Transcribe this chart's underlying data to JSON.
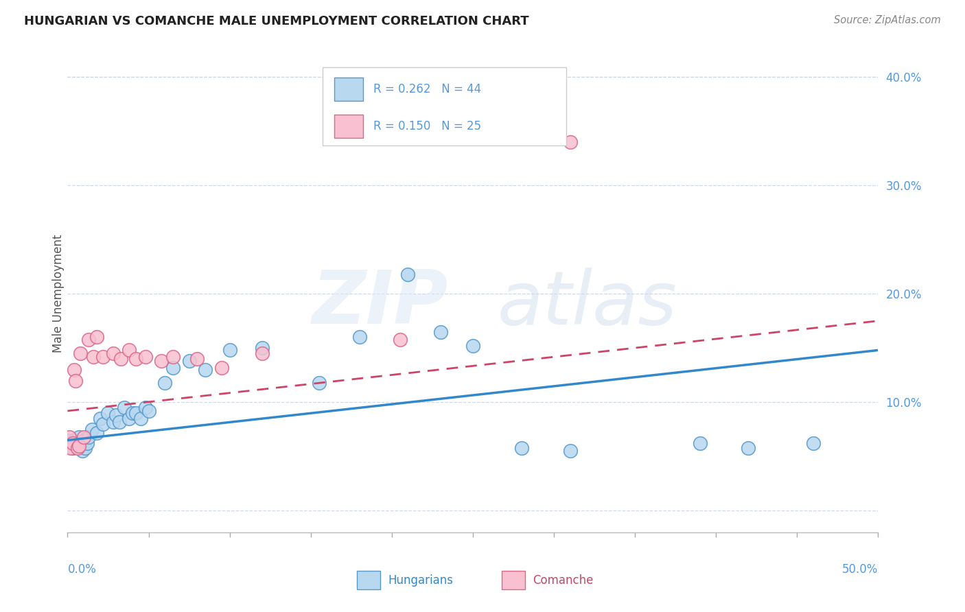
{
  "title": "HUNGARIAN VS COMANCHE MALE UNEMPLOYMENT CORRELATION CHART",
  "source": "Source: ZipAtlas.com",
  "ylabel": "Male Unemployment",
  "xlim": [
    0.0,
    0.5
  ],
  "ylim": [
    -0.02,
    0.42
  ],
  "plot_ylim": [
    -0.02,
    0.42
  ],
  "yticks": [
    0.0,
    0.1,
    0.2,
    0.3,
    0.4
  ],
  "ytick_labels": [
    "",
    "10.0%",
    "20.0%",
    "30.0%",
    "40.0%"
  ],
  "background_color": "#ffffff",
  "grid_color": "#d0d8e8",
  "hungarian_color": "#b8d8f0",
  "hungarian_edge_color": "#5599cc",
  "comanche_color": "#f8c0d0",
  "comanche_edge_color": "#dd6688",
  "hungarian_line_color": "#3388cc",
  "comanche_line_color": "#cc4466",
  "axis_text_color": "#5599dd",
  "title_color": "#222222",
  "source_color": "#888888",
  "R_hungarian": 0.262,
  "N_hungarian": 44,
  "R_comanche": 0.15,
  "N_comanche": 25,
  "hun_trend": [
    0.065,
    0.148
  ],
  "com_trend": [
    0.092,
    0.175
  ],
  "hungarian_x": [
    0.001,
    0.002,
    0.003,
    0.004,
    0.005,
    0.006,
    0.007,
    0.008,
    0.009,
    0.01,
    0.011,
    0.012,
    0.013,
    0.015,
    0.018,
    0.02,
    0.022,
    0.025,
    0.028,
    0.03,
    0.032,
    0.035,
    0.038,
    0.04,
    0.042,
    0.045,
    0.048,
    0.05,
    0.06,
    0.065,
    0.075,
    0.085,
    0.1,
    0.12,
    0.155,
    0.18,
    0.21,
    0.23,
    0.25,
    0.28,
    0.31,
    0.39,
    0.42,
    0.46
  ],
  "hungarian_y": [
    0.065,
    0.062,
    0.058,
    0.065,
    0.06,
    0.063,
    0.068,
    0.06,
    0.055,
    0.065,
    0.058,
    0.062,
    0.068,
    0.075,
    0.072,
    0.085,
    0.08,
    0.09,
    0.082,
    0.088,
    0.082,
    0.095,
    0.085,
    0.09,
    0.09,
    0.085,
    0.095,
    0.092,
    0.118,
    0.132,
    0.138,
    0.13,
    0.148,
    0.15,
    0.118,
    0.16,
    0.218,
    0.165,
    0.152,
    0.058,
    0.055,
    0.062,
    0.058,
    0.062
  ],
  "comanche_x": [
    0.001,
    0.002,
    0.003,
    0.004,
    0.005,
    0.006,
    0.007,
    0.008,
    0.01,
    0.013,
    0.016,
    0.018,
    0.022,
    0.028,
    0.033,
    0.038,
    0.042,
    0.048,
    0.058,
    0.065,
    0.08,
    0.095,
    0.12,
    0.205,
    0.31
  ],
  "comanche_y": [
    0.068,
    0.058,
    0.062,
    0.13,
    0.12,
    0.058,
    0.06,
    0.145,
    0.068,
    0.158,
    0.142,
    0.16,
    0.142,
    0.145,
    0.14,
    0.148,
    0.14,
    0.142,
    0.138,
    0.142,
    0.14,
    0.132,
    0.145,
    0.158,
    0.34
  ]
}
